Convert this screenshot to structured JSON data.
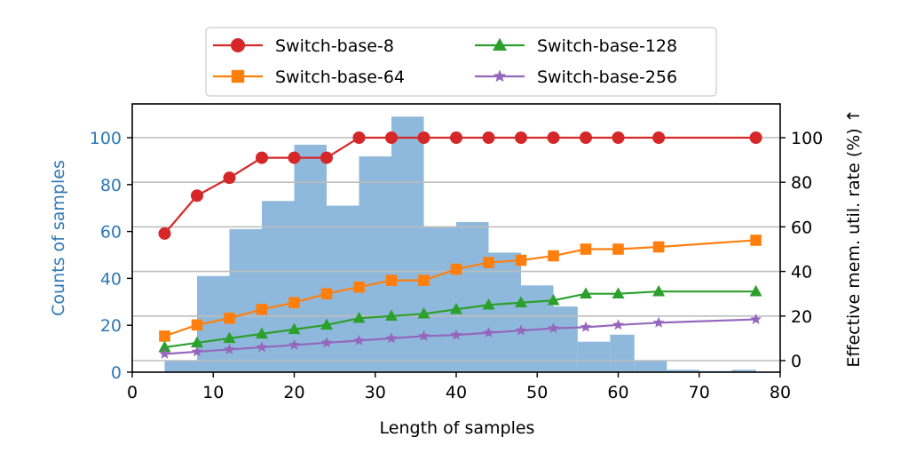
{
  "chart_data": {
    "type": "bar+line",
    "xlabel": "Length of samples",
    "ylabel_left": "Counts of samples",
    "ylabel_right": "Effective mem. util. rate (%) ↑",
    "xlim": [
      0,
      80
    ],
    "ylim_left": [
      0,
      110
    ],
    "ylim_right": [
      -5,
      110
    ],
    "x_ticks": [
      0,
      10,
      20,
      30,
      40,
      50,
      60,
      70,
      80
    ],
    "y_left_ticks": [
      0,
      20,
      40,
      60,
      80,
      100
    ],
    "y_right_ticks": [
      0,
      20,
      40,
      60,
      80,
      100
    ],
    "grid": "horizontal, right axis",
    "legend_position": "top, outside, 2 columns",
    "histogram": {
      "bin_edges": [
        4,
        8,
        12,
        16,
        20,
        24,
        28,
        32,
        36,
        40,
        44,
        48,
        52,
        55,
        59,
        62,
        66,
        70,
        74,
        77
      ],
      "counts": [
        5,
        41,
        61,
        73,
        97,
        71,
        92,
        109,
        62,
        64,
        51,
        37,
        28,
        13,
        16,
        5,
        1,
        0.5,
        1
      ],
      "color": "#8fb9dc"
    },
    "series": [
      {
        "name": "Switch-base-8",
        "color": "#d62728",
        "marker": "circle",
        "x": [
          4,
          8,
          12,
          16,
          20,
          24,
          28,
          32,
          36,
          40,
          44,
          48,
          52,
          56,
          60,
          65,
          77
        ],
        "y": [
          57,
          74,
          82,
          91,
          91,
          91,
          100,
          100,
          100,
          100,
          100,
          100,
          100,
          100,
          100,
          100,
          100
        ]
      },
      {
        "name": "Switch-base-64",
        "color": "#ff7f0e",
        "marker": "square",
        "x": [
          4,
          8,
          12,
          16,
          20,
          24,
          28,
          32,
          36,
          40,
          44,
          48,
          52,
          56,
          60,
          65,
          77
        ],
        "y": [
          11,
          16,
          19,
          23,
          26,
          30,
          33,
          36,
          36,
          41,
          44,
          45,
          47,
          50,
          50,
          51,
          54
        ]
      },
      {
        "name": "Switch-base-128",
        "color": "#2ca02c",
        "marker": "triangle",
        "x": [
          4,
          8,
          12,
          16,
          20,
          24,
          28,
          32,
          36,
          40,
          44,
          48,
          52,
          56,
          60,
          65,
          77
        ],
        "y": [
          6,
          8,
          10,
          12,
          14,
          16,
          19,
          20,
          21,
          23,
          25,
          26,
          27,
          30,
          30,
          31,
          31
        ]
      },
      {
        "name": "Switch-base-256",
        "color": "#9467bd",
        "marker": "star",
        "x": [
          4,
          8,
          12,
          16,
          20,
          24,
          28,
          32,
          36,
          40,
          44,
          48,
          52,
          56,
          60,
          65,
          77
        ],
        "y": [
          3,
          4,
          5,
          6,
          7,
          8,
          9,
          10,
          11,
          11.5,
          12.5,
          13.5,
          14.5,
          15,
          16,
          17,
          18.5
        ]
      }
    ]
  }
}
